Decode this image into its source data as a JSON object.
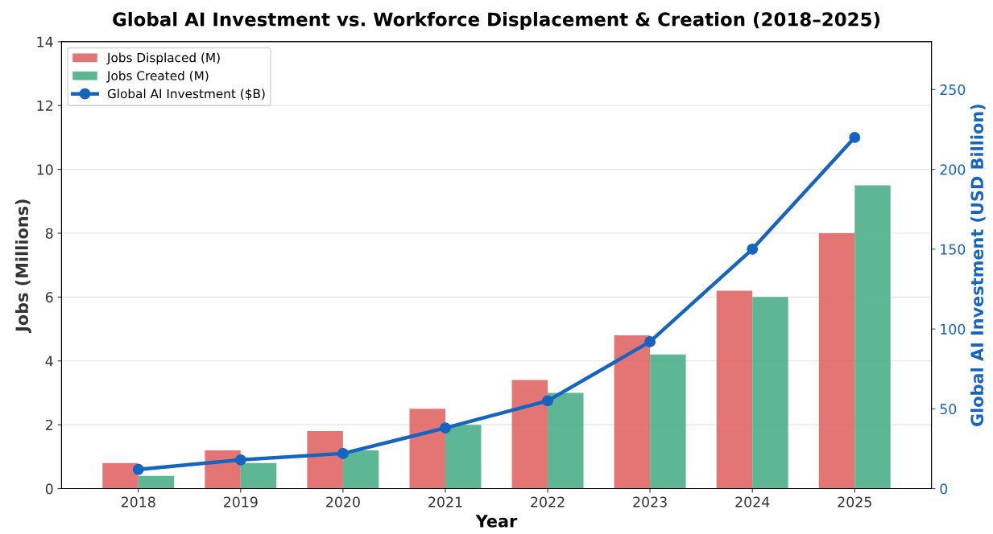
{
  "chart_data": {
    "type": "bar",
    "title": "Global AI Investment vs. Workforce Displacement & Creation (2018–2025)",
    "xlabel": "Year",
    "ylabel": "Jobs (Millions)",
    "y2label": "Global AI Investment (USD Billion)",
    "categories": [
      "2018",
      "2019",
      "2020",
      "2021",
      "2022",
      "2023",
      "2024",
      "2025"
    ],
    "series": [
      {
        "name": "Jobs Displaced (M)",
        "color": "#e06666",
        "values": [
          0.8,
          1.2,
          1.8,
          2.5,
          3.4,
          4.8,
          6.2,
          8.0
        ]
      },
      {
        "name": "Jobs Created (M)",
        "color": "#4caf88",
        "values": [
          0.4,
          0.8,
          1.2,
          2.0,
          3.0,
          4.2,
          6.0,
          9.5
        ]
      },
      {
        "name": "Global AI Investment ($B)",
        "type": "line",
        "axis": "y2",
        "color": "#1565c0",
        "values": [
          12,
          18,
          22,
          38,
          55,
          92,
          150,
          220
        ]
      }
    ],
    "ylim": [
      0,
      14
    ],
    "yticks": [
      0,
      2,
      4,
      6,
      8,
      10,
      12,
      14
    ],
    "y2lim": [
      0,
      280
    ],
    "y2ticks": [
      0,
      50,
      100,
      150,
      200,
      250
    ],
    "grid": "y",
    "legend": "top left",
    "marker": "circle",
    "line_style": "solid"
  }
}
